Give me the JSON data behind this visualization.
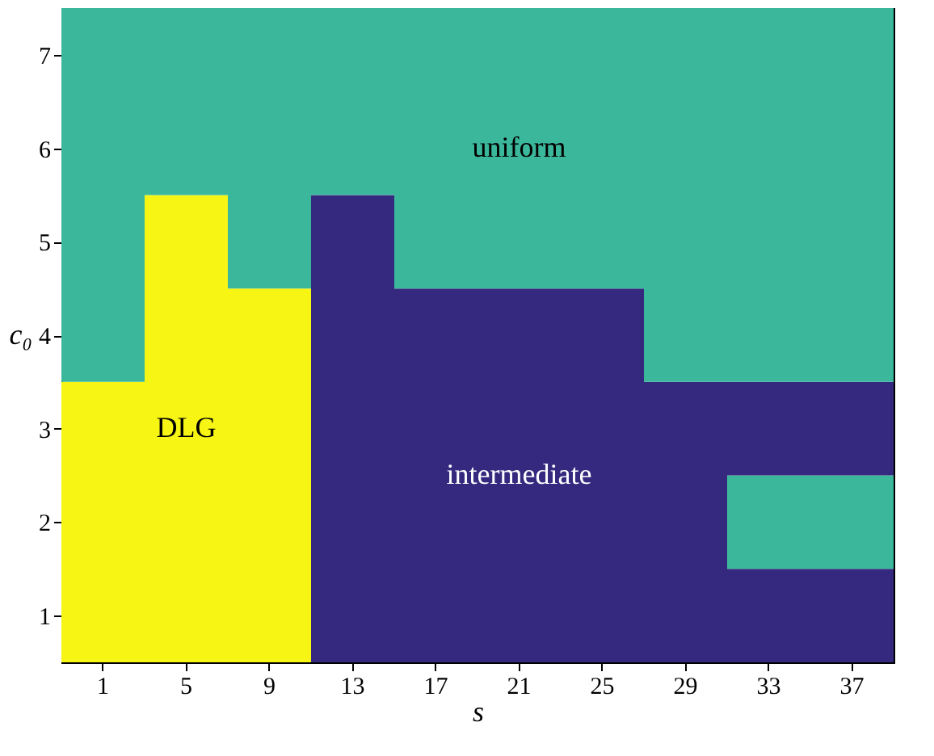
{
  "chart_data": {
    "type": "bar",
    "xlabel": "s",
    "ylabel": "c₀",
    "categories": [
      "1",
      "5",
      "9",
      "13",
      "17",
      "21",
      "25",
      "29",
      "33",
      "37"
    ],
    "ylim": [
      0.5,
      7.5
    ],
    "yticks": [
      1,
      2,
      3,
      4,
      5,
      6,
      7
    ],
    "series": [
      {
        "base": [
          0.5,
          0.5,
          0.5,
          0.5,
          0.5,
          0.5,
          0.5,
          0.5,
          0.5,
          0.5
        ],
        "values": [
          3,
          5,
          4,
          5,
          4,
          4,
          4,
          3,
          1,
          1
        ],
        "colors": [
          "#f7f514",
          "#f7f514",
          "#f7f514",
          "#35297f",
          "#35297f",
          "#35297f",
          "#35297f",
          "#35297f",
          "#35297f",
          "#35297f"
        ],
        "value_labels": [
          null,
          "DLG",
          null,
          null,
          null,
          "intermediate",
          null,
          null,
          null,
          null
        ]
      },
      {
        "base": [
          3.5,
          5.5,
          4.5,
          5.5,
          4.5,
          4.5,
          4.5,
          3.5,
          1.5,
          1.5
        ],
        "values": [
          4,
          2,
          3,
          2,
          3,
          3,
          3,
          4,
          1,
          1
        ],
        "colors": [
          "#3bb89c",
          "#3bb89c",
          "#3bb89c",
          "#3bb89c",
          "#3bb89c",
          "#3bb89c",
          "#3bb89c",
          "#3bb89c",
          "#3bb89c",
          "#3bb89c"
        ],
        "value_labels": [
          null,
          null,
          null,
          null,
          null,
          "uniform",
          null,
          null,
          null,
          null
        ]
      },
      {
        "base": [
          null,
          null,
          null,
          null,
          null,
          null,
          null,
          null,
          2.5,
          2.5
        ],
        "values": [
          null,
          null,
          null,
          null,
          null,
          null,
          null,
          null,
          1,
          1
        ],
        "colors": [
          "#35297f",
          "#35297f",
          "#35297f",
          "#35297f",
          "#35297f",
          "#35297f",
          "#35297f",
          "#35297f",
          "#35297f",
          "#35297f"
        ]
      },
      {
        "base": [
          null,
          null,
          null,
          null,
          null,
          null,
          null,
          null,
          3.5,
          3.5
        ],
        "values": [
          null,
          null,
          null,
          null,
          null,
          null,
          null,
          null,
          4,
          4
        ],
        "colors": [
          "#3bb89c",
          "#3bb89c",
          "#3bb89c",
          "#3bb89c",
          "#3bb89c",
          "#3bb89c",
          "#3bb89c",
          "#3bb89c",
          "#3bb89c",
          "#3bb89c"
        ]
      }
    ]
  }
}
